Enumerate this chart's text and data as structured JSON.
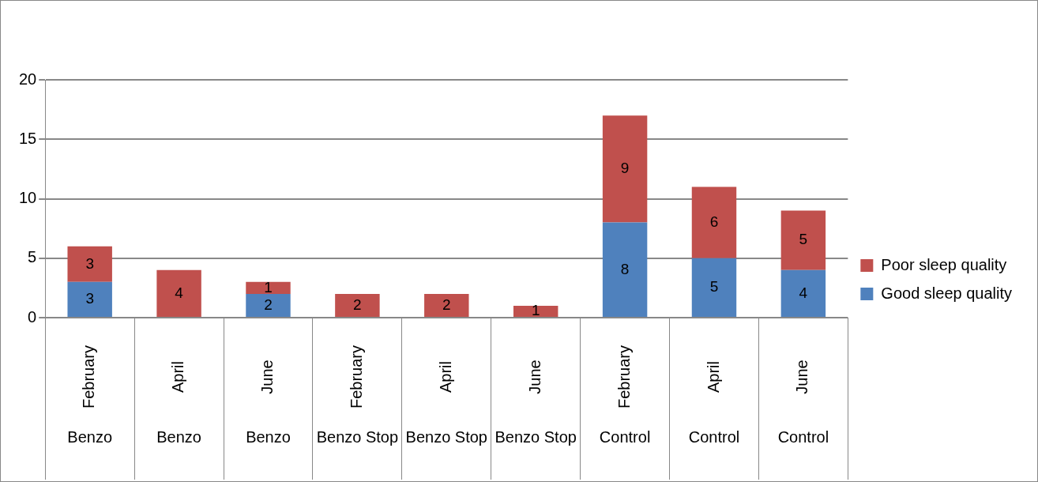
{
  "chart_data": {
    "type": "bar",
    "stacked": true,
    "categories": [
      "February\nBenzo",
      "April\nBenzo",
      "June\nBenzo",
      "February\nBenzo Stop",
      "April\nBenzo Stop",
      "June\nBenzo Stop",
      "February\nControl",
      "April\nControl",
      "June\nControl"
    ],
    "series": [
      {
        "name": "Good sleep quality",
        "color": "#4f81bd",
        "values": [
          3,
          0,
          2,
          0,
          0,
          0,
          8,
          5,
          4
        ],
        "value_labels": [
          "3",
          null,
          "2",
          null,
          null,
          null,
          "8",
          "5",
          "4"
        ]
      },
      {
        "name": "Poor sleep quality",
        "color": "#c0504d",
        "values": [
          3,
          4,
          1,
          2,
          2,
          1,
          9,
          6,
          5
        ],
        "value_labels": [
          "3",
          "4",
          "1",
          "2",
          "2",
          "1",
          "9",
          "6",
          "5"
        ]
      }
    ],
    "ylim": [
      0,
      20
    ],
    "yticks": [
      0,
      5,
      10,
      15,
      20
    ],
    "grid": "y",
    "legend": "right"
  }
}
